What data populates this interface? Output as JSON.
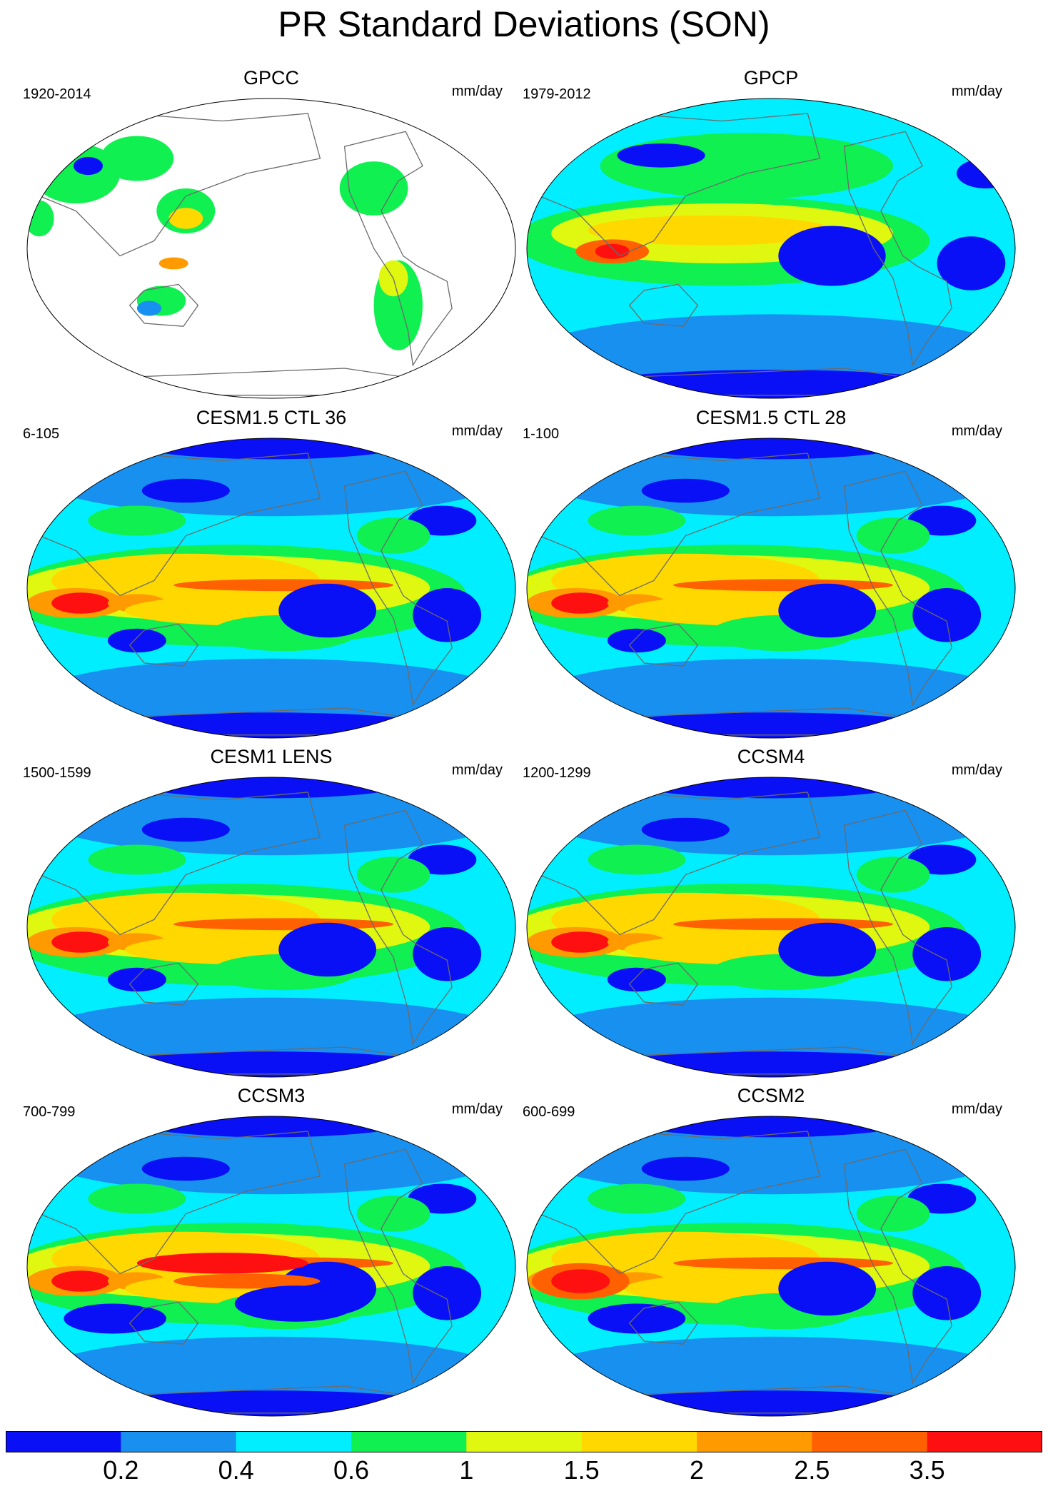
{
  "title": "PR Standard Deviations (SON)",
  "units": "mm/day",
  "colorbar": {
    "labels": [
      "0.2",
      "0.4",
      "0.6",
      "1",
      "1.5",
      "2",
      "2.5",
      "3.5"
    ],
    "colors": [
      "#0a10f5",
      "#1890f0",
      "#00eeff",
      "#10f050",
      "#e0f810",
      "#ffd800",
      "#ff9a00",
      "#ff6000",
      "#ff1010"
    ]
  },
  "chart_data": [
    {
      "type": "heatmap",
      "title": "GPCC",
      "period": "1920-2014",
      "units": "mm/day",
      "variant": "land"
    },
    {
      "type": "heatmap",
      "title": "GPCP",
      "period": "1979-2012",
      "units": "mm/day",
      "variant": "obs"
    },
    {
      "type": "heatmap",
      "title": "CESM1.5 CTL 36",
      "period": "6-105",
      "units": "mm/day",
      "variant": "model"
    },
    {
      "type": "heatmap",
      "title": "CESM1.5 CTL 28",
      "period": "1-100",
      "units": "mm/day",
      "variant": "model"
    },
    {
      "type": "heatmap",
      "title": "CESM1 LENS",
      "period": "1500-1599",
      "units": "mm/day",
      "variant": "model"
    },
    {
      "type": "heatmap",
      "title": "CCSM4",
      "period": "1200-1299",
      "units": "mm/day",
      "variant": "model"
    },
    {
      "type": "heatmap",
      "title": "CCSM3",
      "period": "700-799",
      "units": "mm/day",
      "variant": "ccsm3"
    },
    {
      "type": "heatmap",
      "title": "CCSM2",
      "period": "600-699",
      "units": "mm/day",
      "variant": "ccsm2"
    }
  ]
}
